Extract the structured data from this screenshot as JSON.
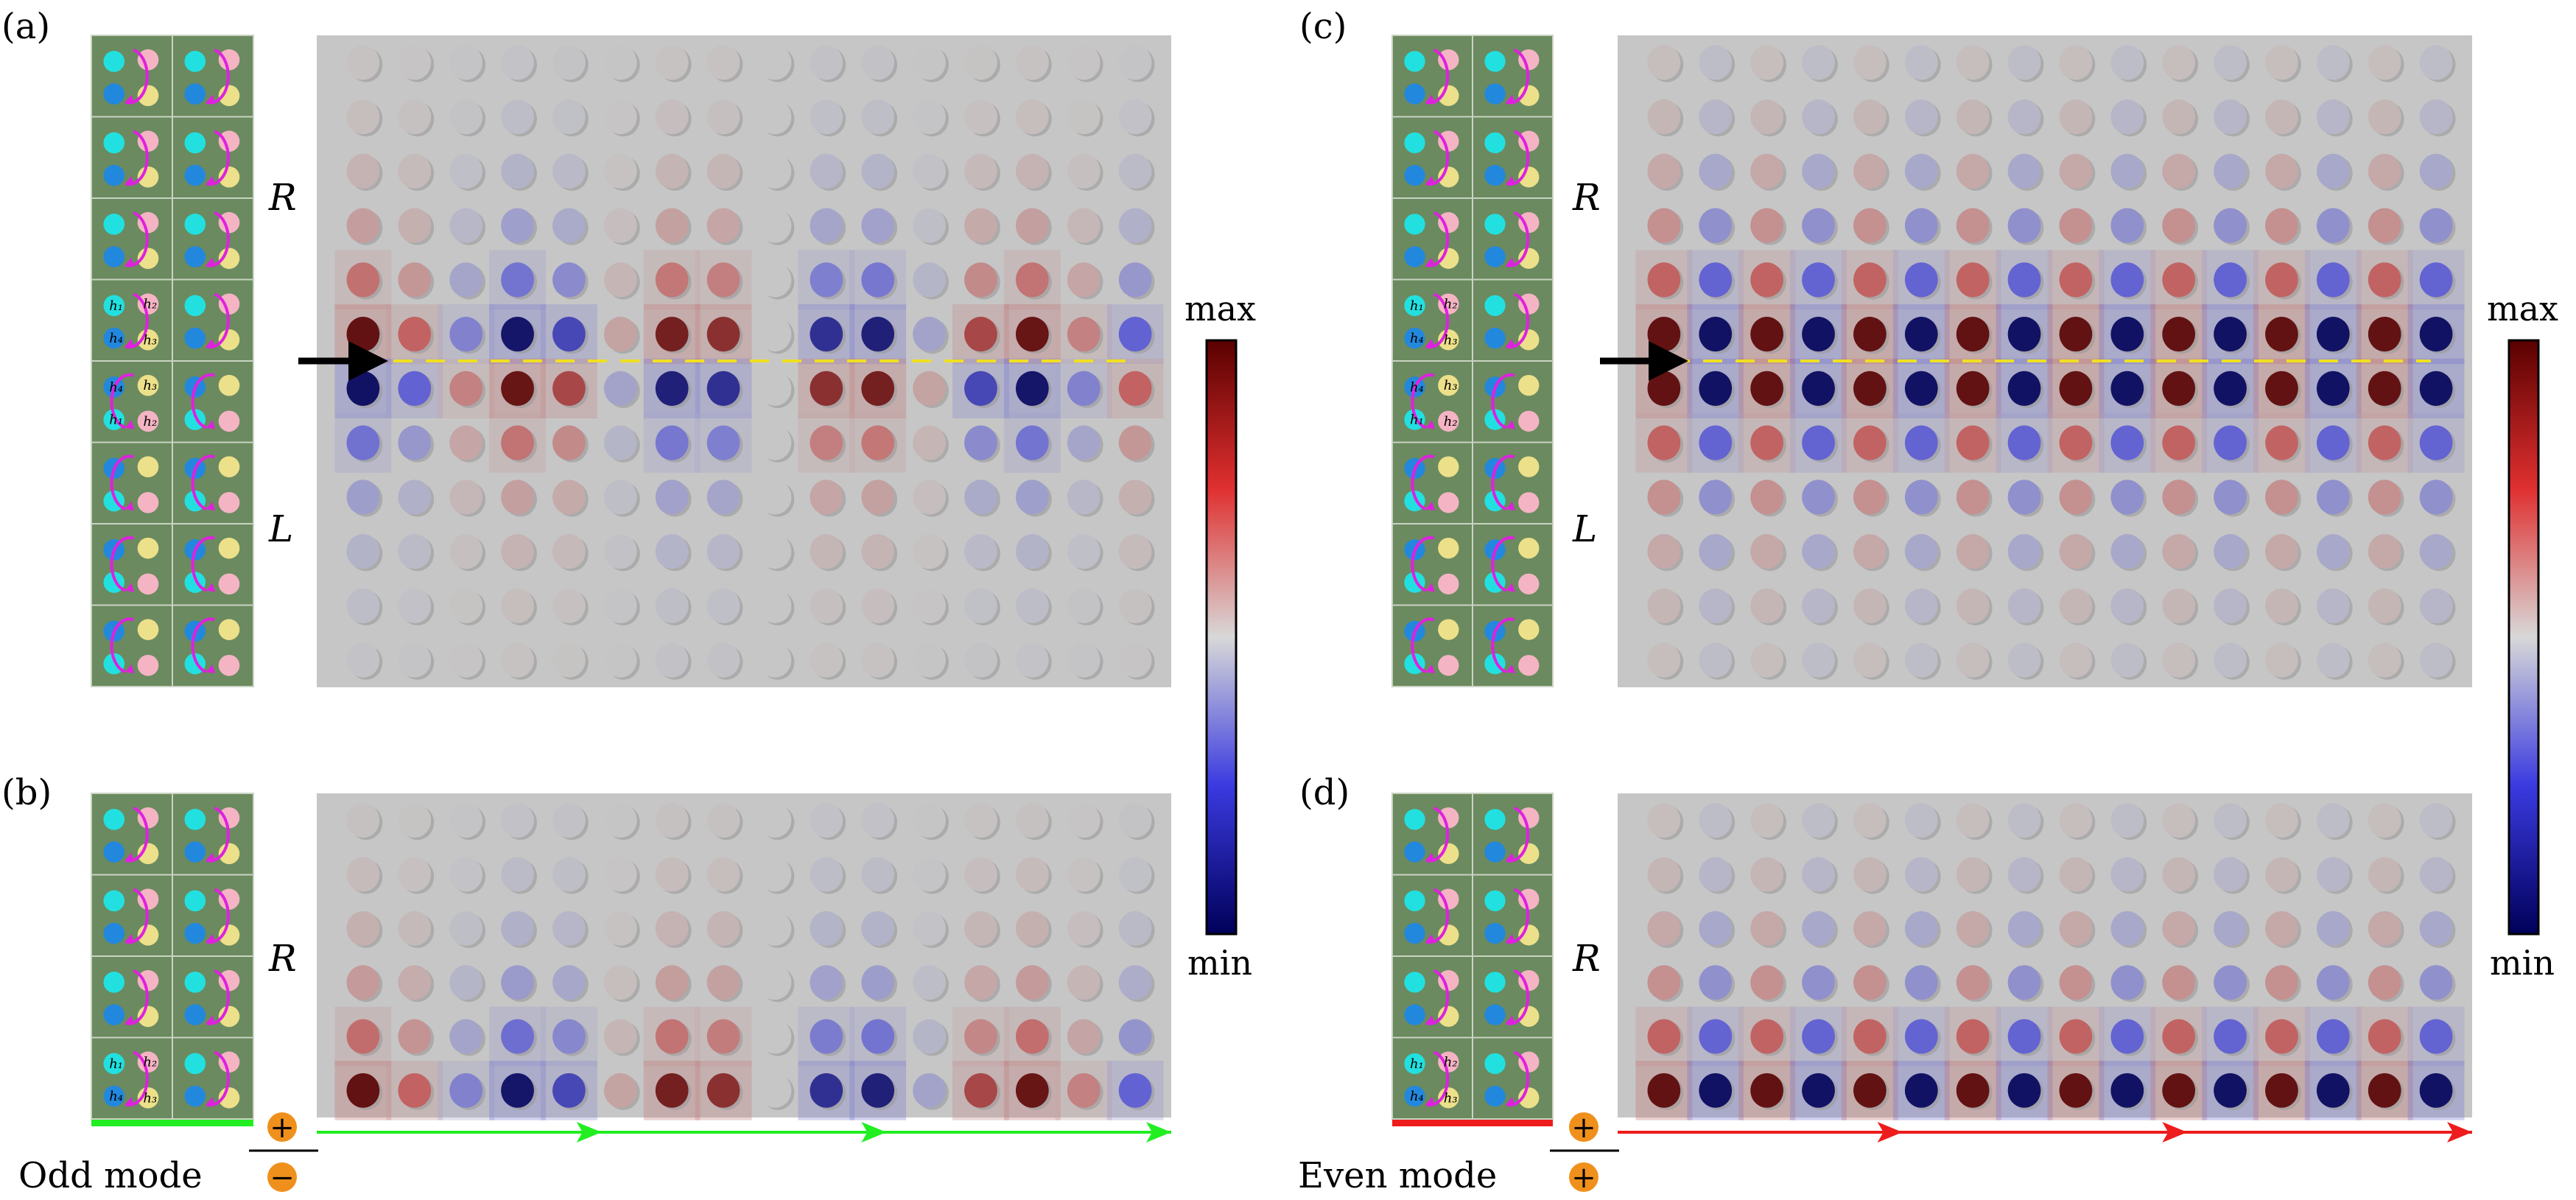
{
  "panels": {
    "a": {
      "label": "(a)",
      "upper_label": "R",
      "lower_label": "L"
    },
    "b": {
      "label": "(b)",
      "upper_label": "R",
      "mode_label": "Odd mode",
      "mode_sign_top": "+",
      "mode_sign_bottom": "−"
    },
    "c": {
      "label": "(c)",
      "upper_label": "R",
      "lower_label": "L"
    },
    "d": {
      "label": "(d)",
      "upper_label": "R",
      "mode_label": "Even mode",
      "mode_sign_top": "+",
      "mode_sign_bottom": "+"
    }
  },
  "colorbar": {
    "max_label": "max",
    "min_label": "min",
    "colors": [
      "#5a0000",
      "#e03030",
      "#d8d8d8",
      "#3a3ae0",
      "#00005a"
    ]
  },
  "unit_cell_labels": {
    "h1": "h₁",
    "h2": "h₂",
    "h3": "h₃",
    "h4": "h₄"
  },
  "colors": {
    "unit_cell_bg": "#6b8a5f",
    "field_bg": "#c6c6c6",
    "rod_cyan": "#22e0e0",
    "rod_blue": "#2288dd",
    "rod_pink": "#f4b4c4",
    "rod_yellow": "#ece08a",
    "arrow_magenta": "#e020e0",
    "odd_mode_arrow": "#22ee22",
    "even_mode_arrow": "#ee1c1c",
    "interface_line": "#f0e020",
    "sign_circle": "#f0901c"
  }
}
